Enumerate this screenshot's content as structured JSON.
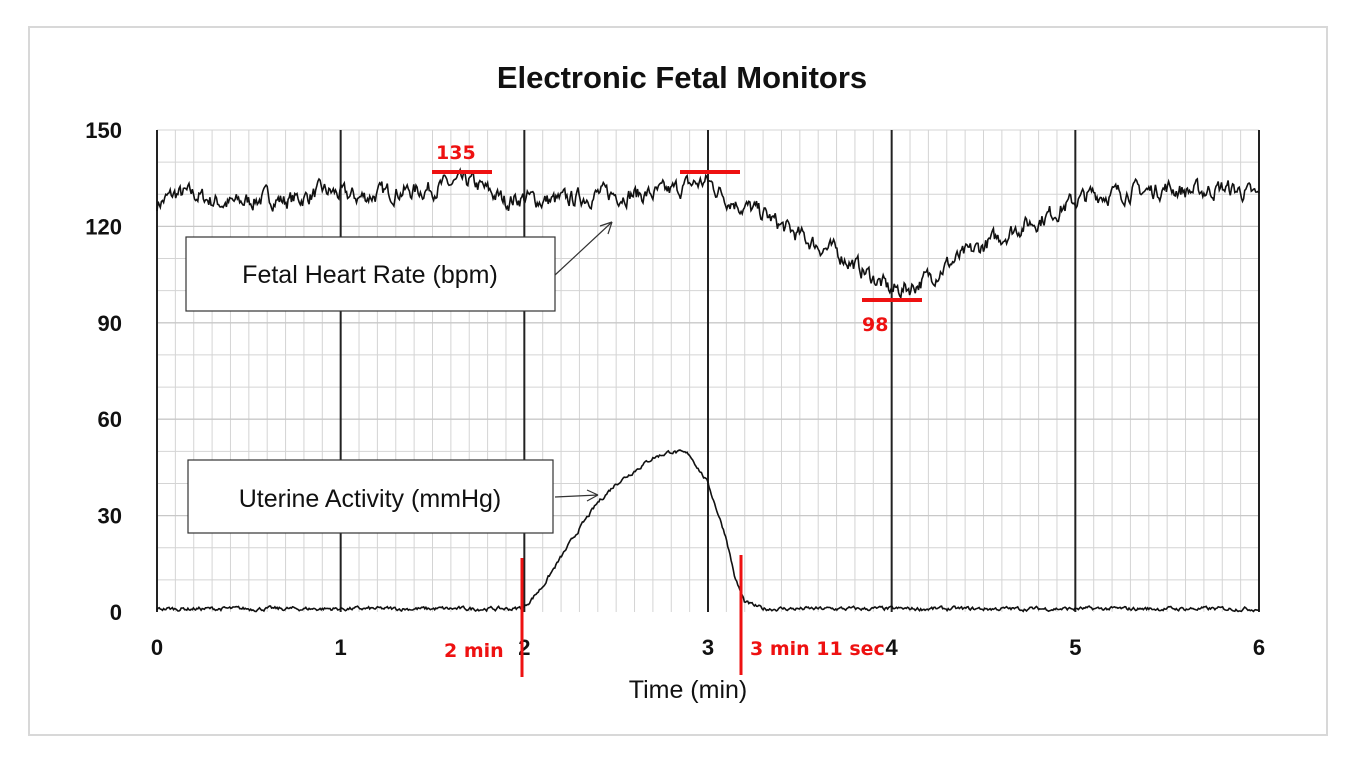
{
  "chart_data": {
    "type": "line",
    "title": "Electronic Fetal Monitors",
    "xlabel": "Time (min)",
    "ylabel": "",
    "xlim": [
      0,
      6
    ],
    "ylim": [
      0,
      150
    ],
    "x_ticks": [
      "0",
      "1",
      "2",
      "3",
      "4",
      "5",
      "6"
    ],
    "y_ticks": [
      "0",
      "30",
      "60",
      "90",
      "120",
      "150"
    ],
    "grid": true,
    "series": [
      {
        "name": "Fetal Heart Rate (bpm)",
        "x": [
          0,
          0.1,
          0.2,
          0.3,
          0.4,
          0.5,
          0.6,
          0.7,
          0.8,
          0.9,
          1.0,
          1.1,
          1.2,
          1.3,
          1.4,
          1.5,
          1.6,
          1.7,
          1.8,
          1.9,
          2.0,
          2.1,
          2.2,
          2.3,
          2.4,
          2.5,
          2.6,
          2.7,
          2.8,
          2.9,
          3.0,
          3.1,
          3.2,
          3.3,
          3.4,
          3.5,
          3.6,
          3.7,
          3.8,
          3.9,
          4.0,
          4.1,
          4.2,
          4.3,
          4.4,
          4.5,
          4.6,
          4.7,
          4.8,
          4.9,
          5.0,
          5.1,
          5.2,
          5.3,
          5.4,
          5.5,
          5.6,
          5.7,
          5.8,
          5.9,
          6.0
        ],
        "y": [
          127,
          130,
          130,
          128,
          127,
          128,
          129,
          128,
          129,
          131,
          130,
          129,
          130,
          131,
          131,
          132,
          133,
          134,
          131,
          128,
          129,
          128,
          128,
          129,
          130,
          130,
          130,
          130,
          131,
          133,
          134,
          129,
          126,
          124,
          120,
          117,
          114,
          112,
          108,
          104,
          100,
          101,
          104,
          108,
          111,
          114,
          117,
          120,
          122,
          125,
          128,
          130,
          130,
          131,
          131,
          132,
          131,
          131,
          132,
          131,
          129
        ],
        "color": "#111111"
      },
      {
        "name": "Uterine Activity (mmHg)",
        "x": [
          0,
          0.5,
          1.0,
          1.5,
          1.95,
          2.0,
          2.1,
          2.2,
          2.3,
          2.4,
          2.5,
          2.6,
          2.7,
          2.8,
          2.9,
          3.0,
          3.1,
          3.15,
          3.2,
          3.3,
          3.5,
          4.0,
          4.5,
          5.0,
          5.5,
          6.0
        ],
        "y": [
          1,
          1,
          1,
          1,
          1,
          1.5,
          8,
          17,
          26,
          34,
          40,
          44,
          48,
          50,
          49,
          40,
          23,
          10,
          3,
          1,
          1,
          1,
          1,
          1,
          1,
          1
        ],
        "color": "#111111"
      }
    ],
    "annotations": {
      "peak_label": "135",
      "nadir_label": "98",
      "start_label": "2 min",
      "end_label": "3 min 11 sec",
      "color": "#ee1111"
    }
  }
}
